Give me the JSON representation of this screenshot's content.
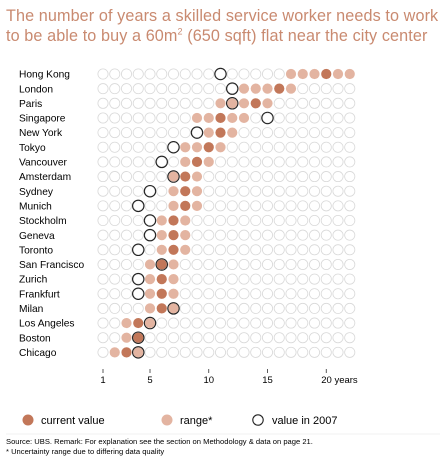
{
  "title": {
    "line1": "The number of years a skilled service worker needs to work",
    "line2_pre": "to be able to buy a 60m",
    "line2_sup": "2",
    "line2_post": " (650 sqft) flat near the city center"
  },
  "colors": {
    "current": "#c27759",
    "range": "#e3b4a1",
    "empty_stroke": "#d9d9d9",
    "outline_2007": "#222222",
    "title": "#c98a70"
  },
  "chart_data": {
    "type": "dot-plot",
    "unit": "years",
    "x_ticks": [
      {
        "value": 1,
        "label": "1"
      },
      {
        "value": 5,
        "label": "5"
      },
      {
        "value": 10,
        "label": "10"
      },
      {
        "value": 15,
        "label": "15"
      },
      {
        "value": 20,
        "label": "20 years"
      }
    ],
    "xlim": [
      1,
      22
    ],
    "cities": [
      {
        "name": "Hong Kong",
        "current": 20,
        "range": [
          17,
          22
        ],
        "y2007": 11
      },
      {
        "name": "London",
        "current": 16,
        "range": [
          13,
          17
        ],
        "y2007": 12
      },
      {
        "name": "Paris",
        "current": 14,
        "range": [
          11,
          15
        ],
        "y2007": 12
      },
      {
        "name": "Singapore",
        "current": 11,
        "range": [
          9,
          13
        ],
        "y2007": 15
      },
      {
        "name": "New York",
        "current": 11,
        "range": [
          10,
          12
        ],
        "y2007": 9
      },
      {
        "name": "Tokyo",
        "current": 10,
        "range": [
          8,
          11
        ],
        "y2007": 7
      },
      {
        "name": "Vancouver",
        "current": 9,
        "range": [
          8,
          10
        ],
        "y2007": 6
      },
      {
        "name": "Amsterdam",
        "current": 8,
        "range": [
          7,
          9
        ],
        "y2007": 7
      },
      {
        "name": "Sydney",
        "current": 8,
        "range": [
          7,
          9
        ],
        "y2007": 5
      },
      {
        "name": "Munich",
        "current": 8,
        "range": [
          7,
          9
        ],
        "y2007": 4
      },
      {
        "name": "Stockholm",
        "current": 7,
        "range": [
          6,
          8
        ],
        "y2007": 5
      },
      {
        "name": "Geneva",
        "current": 7,
        "range": [
          6,
          8
        ],
        "y2007": 5
      },
      {
        "name": "Toronto",
        "current": 7,
        "range": [
          6,
          8
        ],
        "y2007": 4
      },
      {
        "name": "San Francisco",
        "current": 6,
        "range": [
          5,
          7
        ],
        "y2007": 6
      },
      {
        "name": "Zurich",
        "current": 6,
        "range": [
          5,
          7
        ],
        "y2007": 4
      },
      {
        "name": "Frankfurt",
        "current": 6,
        "range": [
          5,
          7
        ],
        "y2007": 4
      },
      {
        "name": "Milan",
        "current": 6,
        "range": [
          5,
          7
        ],
        "y2007": 7
      },
      {
        "name": "Los Angeles",
        "current": 4,
        "range": [
          3,
          5
        ],
        "y2007": 5
      },
      {
        "name": "Boston",
        "current": 4,
        "range": [
          3,
          4
        ],
        "y2007": 4
      },
      {
        "name": "Chicago",
        "current": 3,
        "range": [
          2,
          4
        ],
        "y2007": 4
      }
    ]
  },
  "legend": {
    "current": "current value",
    "range": "range*",
    "y2007": "value in 2007"
  },
  "notes": {
    "source": "Source: UBS. Remark: For explanation see the section on Methodology & data on page 21.",
    "footnote": "* Uncertainty range due to differing data quality"
  }
}
